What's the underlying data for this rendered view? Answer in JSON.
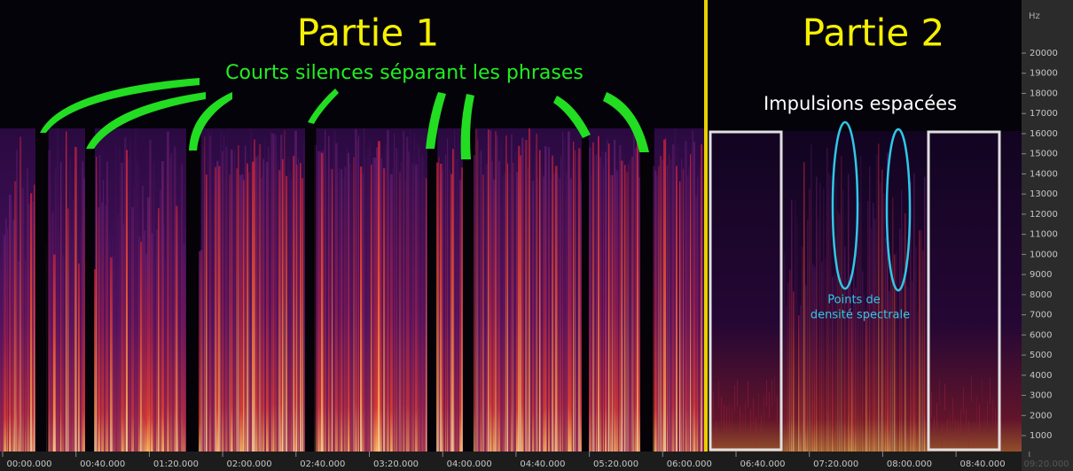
{
  "titles": {
    "part1": "Partie 1",
    "part2": "Partie 2"
  },
  "annotations": {
    "silences": "Courts silences séparant les phrases",
    "impulses": "Impulsions espacées",
    "density_line1": "Points de",
    "density_line2": "densité spectrale"
  },
  "frequency_axis": {
    "unit": "Hz",
    "ticks": [
      20000,
      19000,
      18000,
      17000,
      16000,
      15000,
      14000,
      13000,
      12000,
      11000,
      10000,
      9000,
      8000,
      7000,
      6000,
      5000,
      4000,
      3000,
      2000,
      1000
    ]
  },
  "time_axis": {
    "ticks": [
      "00:00.000",
      "00:40.000",
      "01:20.000",
      "02:00.000",
      "02:40.000",
      "03:20.000",
      "04:00.000",
      "04:40.000",
      "05:20.000",
      "06:00.000",
      "06:40.000",
      "07:20.000",
      "08:00.000",
      "08:40.000",
      "09:20.000"
    ]
  }
}
